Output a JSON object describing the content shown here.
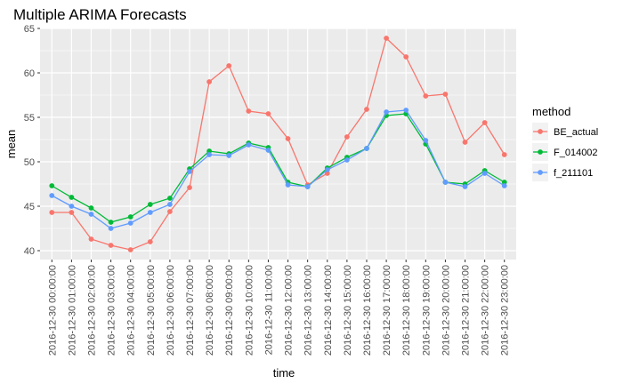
{
  "chart_data": {
    "type": "line",
    "title": "Multiple ARIMA Forecasts",
    "xlabel": "time",
    "ylabel": "mean",
    "ylim": [
      39,
      65
    ],
    "yticks": [
      40,
      45,
      50,
      55,
      60,
      65
    ],
    "grid": true,
    "legend": {
      "title": "method",
      "position": "right"
    },
    "categories": [
      "2016-12-30 00:00:00",
      "2016-12-30 01:00:00",
      "2016-12-30 02:00:00",
      "2016-12-30 03:00:00",
      "2016-12-30 04:00:00",
      "2016-12-30 05:00:00",
      "2016-12-30 06:00:00",
      "2016-12-30 07:00:00",
      "2016-12-30 08:00:00",
      "2016-12-30 09:00:00",
      "2016-12-30 10:00:00",
      "2016-12-30 11:00:00",
      "2016-12-30 12:00:00",
      "2016-12-30 13:00:00",
      "2016-12-30 14:00:00",
      "2016-12-30 15:00:00",
      "2016-12-30 16:00:00",
      "2016-12-30 17:00:00",
      "2016-12-30 18:00:00",
      "2016-12-30 19:00:00",
      "2016-12-30 20:00:00",
      "2016-12-30 21:00:00",
      "2016-12-30 22:00:00",
      "2016-12-30 23:00:00"
    ],
    "series": [
      {
        "name": "BE_actual",
        "color": "#F8766D",
        "values": [
          44.3,
          44.3,
          41.3,
          40.6,
          40.1,
          41.0,
          44.4,
          47.1,
          59.0,
          60.8,
          55.7,
          55.4,
          52.6,
          47.4,
          48.7,
          52.8,
          55.9,
          63.9,
          61.8,
          57.4,
          57.6,
          52.2,
          54.4,
          50.8
        ]
      },
      {
        "name": "F_014002",
        "color": "#00BA38",
        "values": [
          47.3,
          46.0,
          44.8,
          43.2,
          43.8,
          45.2,
          45.9,
          49.2,
          51.2,
          50.9,
          52.1,
          51.6,
          47.7,
          47.2,
          49.3,
          50.5,
          51.5,
          55.2,
          55.4,
          52.0,
          47.7,
          47.5,
          49.0,
          47.7
        ]
      },
      {
        "name": "f_211101",
        "color": "#619CFF",
        "values": [
          46.2,
          45.0,
          44.1,
          42.5,
          43.1,
          44.3,
          45.2,
          48.9,
          50.8,
          50.7,
          51.9,
          51.3,
          47.4,
          47.2,
          49.1,
          50.2,
          51.5,
          55.6,
          55.8,
          52.4,
          47.7,
          47.2,
          48.7,
          47.3
        ]
      }
    ]
  }
}
